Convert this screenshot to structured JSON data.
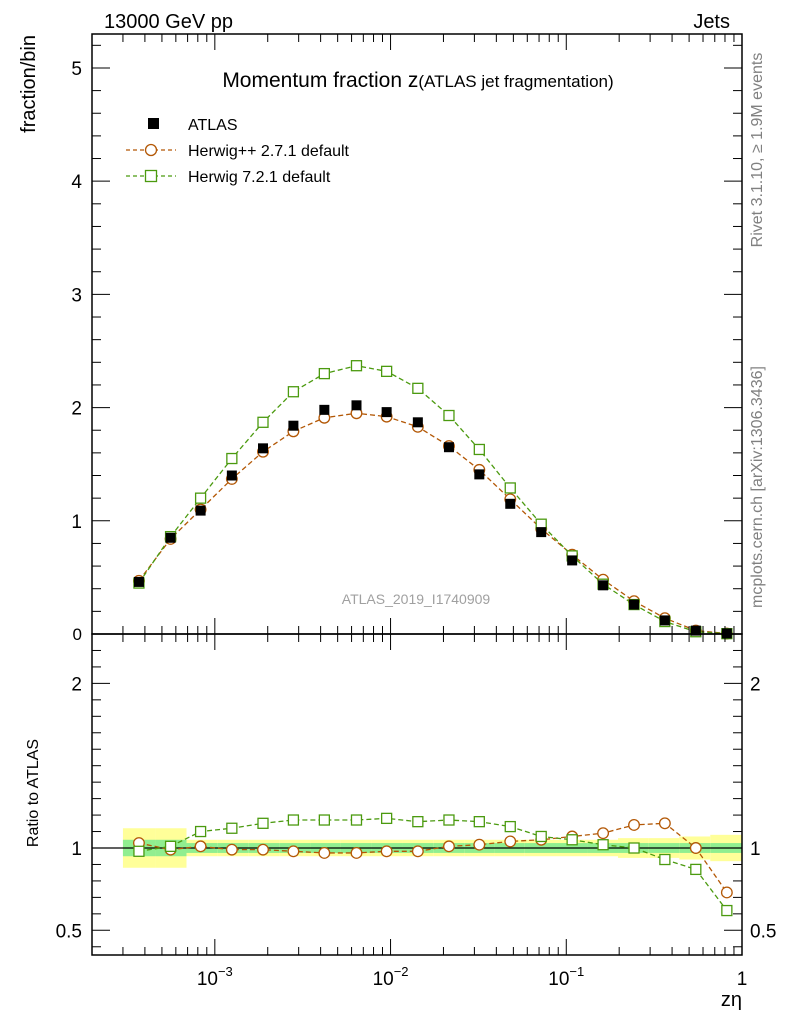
{
  "header": {
    "left": "13000 GeV pp",
    "right": "Jets"
  },
  "side_labels": {
    "top": "Rivet 3.1.10, ≥ 1.9M events",
    "bottom": "mcplots.cern.ch [arXiv:1306.3436]"
  },
  "chart_data": [
    {
      "type": "scatter",
      "title": "Momentum fraction z",
      "subtitle": "(ATLAS jet fragmentation)",
      "ylabel": "fraction/bin",
      "xlabel": "zη",
      "watermark": "ATLAS_2019_I1740909",
      "xscale": "log",
      "xlim": [
        0.0002,
        1
      ],
      "ylim": [
        0,
        5.3
      ],
      "yticks": [
        1,
        2,
        3,
        4,
        5
      ],
      "ytick_labels": [
        "1",
        "2",
        "3",
        "4",
        "5"
      ],
      "extra_tick_label": "0",
      "legend_position": "top-left",
      "x": [
        0.00037,
        0.00056,
        0.00083,
        0.00125,
        0.00188,
        0.0028,
        0.0042,
        0.0064,
        0.0095,
        0.0143,
        0.0215,
        0.032,
        0.048,
        0.072,
        0.108,
        0.162,
        0.243,
        0.364,
        0.546,
        0.82
      ],
      "series": [
        {
          "name": "ATLAS",
          "color": "#000000",
          "marker": "filled-square",
          "values": [
            0.46,
            0.85,
            1.09,
            1.4,
            1.64,
            1.84,
            1.98,
            2.02,
            1.96,
            1.87,
            1.65,
            1.41,
            1.15,
            0.9,
            0.65,
            0.43,
            0.26,
            0.12,
            0.03,
            0.005
          ]
        },
        {
          "name": "Herwig++ 2.7.1 default",
          "color": "#b35806",
          "marker": "open-circle",
          "values": [
            0.47,
            0.84,
            1.1,
            1.37,
            1.61,
            1.79,
            1.91,
            1.95,
            1.92,
            1.83,
            1.66,
            1.45,
            1.19,
            0.93,
            0.7,
            0.48,
            0.29,
            0.14,
            0.03,
            0.004
          ]
        },
        {
          "name": "Herwig 7.2.1 default",
          "color": "#4b9a0f",
          "marker": "open-square",
          "values": [
            0.45,
            0.86,
            1.2,
            1.55,
            1.87,
            2.14,
            2.3,
            2.37,
            2.32,
            2.17,
            1.93,
            1.63,
            1.29,
            0.97,
            0.69,
            0.44,
            0.26,
            0.11,
            0.02,
            0.003
          ]
        }
      ]
    },
    {
      "type": "line",
      "ylabel": "Ratio to ATLAS",
      "xscale": "log",
      "xlim": [
        0.0002,
        1
      ],
      "ylim": [
        0.35,
        2.3
      ],
      "yticks": [
        0.5,
        1,
        2
      ],
      "ytick_labels": [
        "0.5",
        "1",
        "2"
      ],
      "xtick_values": [
        0.001,
        0.01,
        0.1,
        1
      ],
      "xtick_base": [
        "10",
        "10",
        "10",
        "1"
      ],
      "xtick_exp": [
        "−3",
        "−2",
        "−1",
        ""
      ],
      "x": [
        0.00037,
        0.00056,
        0.00083,
        0.00125,
        0.00188,
        0.0028,
        0.0042,
        0.0064,
        0.0095,
        0.0143,
        0.0215,
        0.032,
        0.048,
        0.072,
        0.108,
        0.162,
        0.243,
        0.364,
        0.546,
        0.82
      ],
      "band_edges": [
        0.0003,
        0.00046,
        0.00069,
        0.00104,
        0.00156,
        0.00234,
        0.0035,
        0.0052,
        0.0078,
        0.0117,
        0.0175,
        0.0263,
        0.039,
        0.058,
        0.088,
        0.132,
        0.197,
        0.295,
        0.44,
        0.66,
        1.0
      ],
      "band_yellow": [
        0.12,
        0.12,
        0.05,
        0.05,
        0.05,
        0.05,
        0.05,
        0.05,
        0.05,
        0.05,
        0.05,
        0.05,
        0.05,
        0.05,
        0.05,
        0.05,
        0.06,
        0.06,
        0.07,
        0.08
      ],
      "band_green": [
        0.05,
        0.05,
        0.03,
        0.03,
        0.03,
        0.03,
        0.03,
        0.03,
        0.03,
        0.03,
        0.03,
        0.03,
        0.03,
        0.03,
        0.03,
        0.03,
        0.03,
        0.03,
        0.03,
        0.03
      ],
      "series": [
        {
          "name": "Herwig++ 2.7.1 default",
          "color": "#b35806",
          "marker": "open-circle",
          "values": [
            1.03,
            0.99,
            1.01,
            0.99,
            0.99,
            0.98,
            0.97,
            0.97,
            0.98,
            0.98,
            1.01,
            1.02,
            1.04,
            1.05,
            1.07,
            1.09,
            1.14,
            1.15,
            1.0,
            0.73
          ]
        },
        {
          "name": "Herwig 7.2.1 default",
          "color": "#4b9a0f",
          "marker": "open-square",
          "values": [
            0.98,
            1.01,
            1.1,
            1.12,
            1.15,
            1.17,
            1.17,
            1.17,
            1.18,
            1.16,
            1.17,
            1.16,
            1.13,
            1.07,
            1.05,
            1.02,
            1.0,
            0.93,
            0.87,
            0.62
          ]
        }
      ]
    }
  ]
}
